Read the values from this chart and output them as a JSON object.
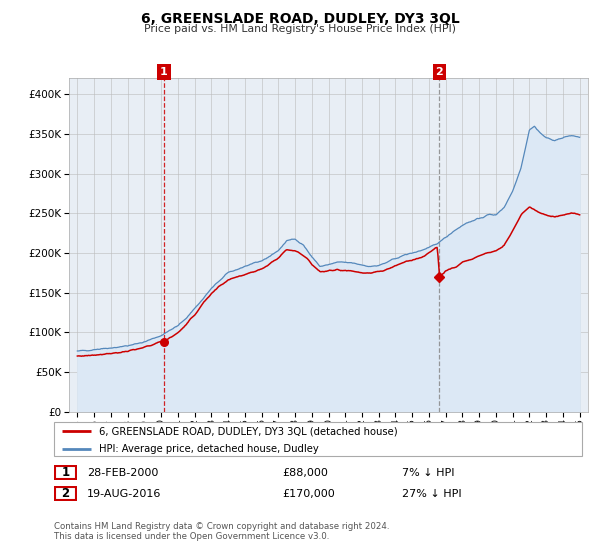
{
  "title": "6, GREENSLADE ROAD, DUDLEY, DY3 3QL",
  "subtitle": "Price paid vs. HM Land Registry's House Price Index (HPI)",
  "legend_line1": "6, GREENSLADE ROAD, DUDLEY, DY3 3QL (detached house)",
  "legend_line2": "HPI: Average price, detached house, Dudley",
  "annotation1_date": "28-FEB-2000",
  "annotation1_price": "£88,000",
  "annotation1_hpi": "7% ↓ HPI",
  "annotation2_date": "19-AUG-2016",
  "annotation2_price": "£170,000",
  "annotation2_hpi": "27% ↓ HPI",
  "footer1": "Contains HM Land Registry data © Crown copyright and database right 2024.",
  "footer2": "This data is licensed under the Open Government Licence v3.0.",
  "red_line_color": "#cc0000",
  "blue_line_color": "#5588bb",
  "blue_fill_color": "#dce8f5",
  "plot_bg_color": "#e8eef5",
  "grid_color": "#bbbbbb",
  "annotation_box_color": "#cc0000",
  "sale1_year": 2000.15,
  "sale1_value": 88000,
  "sale2_year": 2016.63,
  "sale2_value": 170000,
  "vline1_year": 2000.15,
  "vline2_year": 2016.63,
  "ylim_min": 0,
  "ylim_max": 420000,
  "xlim_min": 1994.5,
  "xlim_max": 2025.5
}
